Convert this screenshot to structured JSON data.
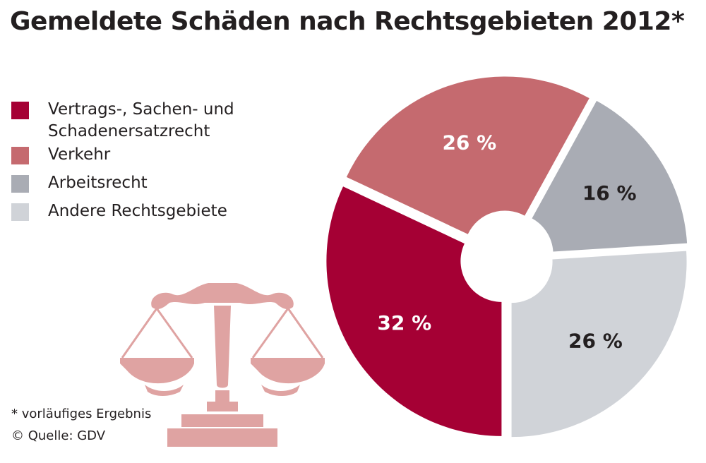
{
  "title": "Gemeldete Schäden nach Rechtsgebieten 2012*",
  "footnote": "* vorläufiges Ergebnis",
  "source": "© Quelle: GDV",
  "colors": {
    "vertrag": "#a50034",
    "verkehr": "#c56a6f",
    "arbeit": "#a9acb4",
    "andere": "#d0d3d8",
    "scales": "#dfa3a2"
  },
  "icons": {
    "scales": "scales-of-justice-icon"
  },
  "chart_data": {
    "type": "pie",
    "title": "Gemeldete Schäden nach Rechtsgebieten 2012*",
    "unit": "%",
    "legend_position": "left",
    "categories": [
      "Vertrags-, Sachen- und Schadenersatzrecht",
      "Verkehr",
      "Arbeitsrecht",
      "Andere Rechtsgebiete"
    ],
    "values": [
      32,
      26,
      16,
      26
    ],
    "labels": [
      "32 %",
      "26 %",
      "16 %",
      "26 %"
    ],
    "colors": [
      "#a50034",
      "#c56a6f",
      "#a9acb4",
      "#d0d3d8"
    ],
    "label_colors": [
      "#ffffff",
      "#ffffff",
      "#231f20",
      "#231f20"
    ]
  }
}
